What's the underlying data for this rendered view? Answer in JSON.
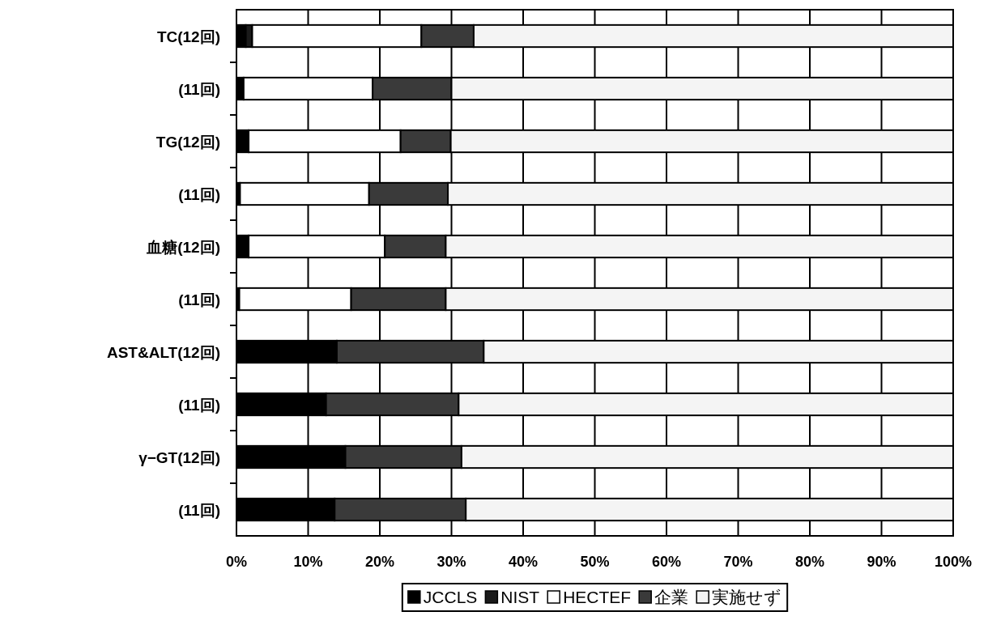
{
  "chart_data": {
    "type": "bar",
    "orientation": "horizontal",
    "stacked": true,
    "categories": [
      "TC(12回)",
      "(11回)",
      "TG(12回)",
      "(11回)",
      "血糖(12回)",
      "(11回)",
      "AST&ALT(12回)",
      "(11回)",
      "γ−GT(12回)",
      "(11回)"
    ],
    "series": [
      {
        "name": "JCCLS",
        "color": "#000000",
        "values": [
          1.3,
          1,
          1.7,
          0.5,
          1.7,
          0.4,
          14,
          12.5,
          15.2,
          13.7
        ]
      },
      {
        "name": "NIST",
        "color": "#1a1a1a",
        "values": [
          0.9,
          0,
          0,
          0,
          0,
          0,
          0,
          0,
          0,
          0
        ]
      },
      {
        "name": "HECTEF",
        "color": "#ffffff",
        "values": [
          23.6,
          18,
          21.2,
          18,
          19,
          15.6,
          0,
          0,
          0,
          0
        ]
      },
      {
        "name": "企業",
        "color": "#3a3a3a",
        "values": [
          7.3,
          11,
          7,
          11,
          8.5,
          13.2,
          20.5,
          18.5,
          16.2,
          18.3
        ]
      },
      {
        "name": "実施せず",
        "color": "#f4f4f4",
        "values": [
          66.9,
          70,
          70.1,
          70.5,
          70.8,
          70.8,
          65.5,
          69,
          68.6,
          68
        ]
      }
    ],
    "xlim": [
      0,
      100
    ],
    "xticks": [
      {
        "value": 0,
        "label": "0%"
      },
      {
        "value": 10,
        "label": "10%"
      },
      {
        "value": 20,
        "label": "20%"
      },
      {
        "value": 30,
        "label": "30%"
      },
      {
        "value": 40,
        "label": "40%"
      },
      {
        "value": 50,
        "label": "50%"
      },
      {
        "value": 60,
        "label": "60%"
      },
      {
        "value": 70,
        "label": "70%"
      },
      {
        "value": 80,
        "label": "80%"
      },
      {
        "value": 90,
        "label": "90%"
      },
      {
        "value": 100,
        "label": "100%"
      }
    ],
    "grid": "x",
    "legend": "bottom"
  }
}
